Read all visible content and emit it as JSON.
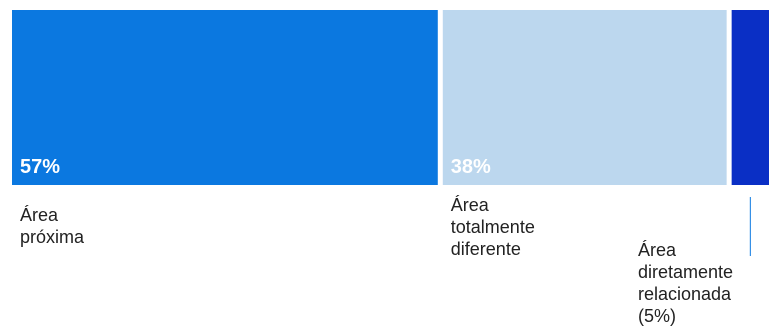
{
  "chart_data": {
    "type": "bar",
    "orientation": "horizontal-stacked-100",
    "categories": [
      "Área próxima",
      "Área totalmente diferente",
      "Área diretamente relacionada (5%)"
    ],
    "category_label_lines": [
      [
        "Área",
        "próxima"
      ],
      [
        "Área",
        "totalmente",
        "diferente"
      ],
      [
        "Área",
        "diretamente",
        "relacionada",
        "(5%)"
      ]
    ],
    "values": [
      57,
      38,
      5
    ],
    "value_labels": [
      "57%",
      "38%",
      ""
    ],
    "colors": [
      "#0b78e0",
      "#bcd7ee",
      "#0a2fc5"
    ],
    "value_label_colors": [
      "#ffffff",
      "#ffffff",
      "#ffffff"
    ],
    "title": "",
    "xlabel": "",
    "ylabel": "",
    "xlim": [
      0,
      100
    ],
    "grid": false,
    "legend": "none",
    "leader_line_color": "#0b78e0"
  }
}
